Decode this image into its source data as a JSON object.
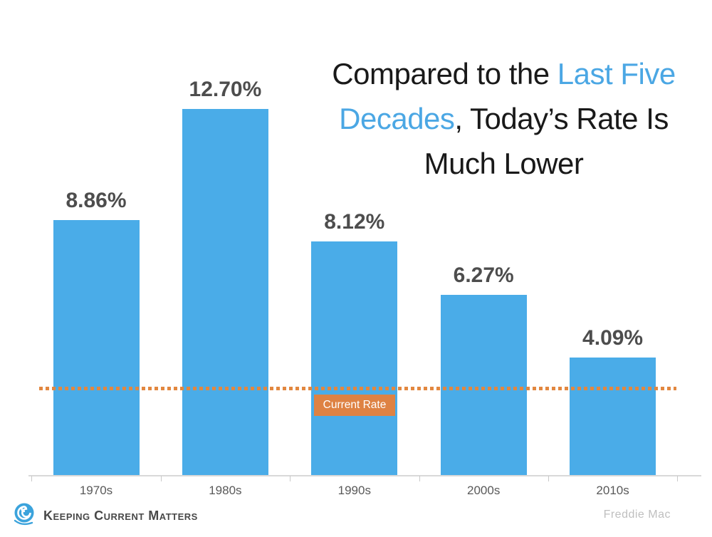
{
  "title": {
    "full_text": "Compared to the Last Five Decades, Today’s Rate Is Much Lower",
    "lines": [
      {
        "segments": [
          {
            "text": "Compared to the "
          },
          {
            "text": "Last Five"
          }
        ]
      },
      {
        "segments": [
          {
            "text": "Decades"
          },
          {
            "text": ", Today’s Rate Is"
          }
        ]
      },
      {
        "segments": [
          {
            "text": "Much Lower"
          }
        ]
      }
    ],
    "highlight_color": "#4BA7E4",
    "text_color": "#191919"
  },
  "chart_data": {
    "type": "bar",
    "categories": [
      "1970s",
      "1980s",
      "1990s",
      "2000s",
      "2010s"
    ],
    "values": [
      8.86,
      12.7,
      8.12,
      6.27,
      4.09
    ],
    "value_labels": [
      "8.86%",
      "12.70%",
      "8.12%",
      "6.27%",
      "4.09%"
    ],
    "title": "Compared to the Last Five Decades, Today’s Rate Is Much Lower",
    "xlabel": "",
    "ylabel": "",
    "ylim": [
      0,
      13.5
    ],
    "grid": false,
    "legend_position": "none",
    "bar_color": "#4AACE8",
    "label_color": "#4D4D4D",
    "axis_color": "#D9D9D9",
    "reference_line": {
      "label": "Current Rate",
      "approx_value": 3.0,
      "style": "dotted",
      "color": "#E2873F",
      "box_color": "#DE8243",
      "box_text_color": "#FFFFFF"
    }
  },
  "footer": {
    "brand": "Keeping Current Matters",
    "source": "Freddie Mac",
    "logo_color": "#3BA3DC"
  }
}
